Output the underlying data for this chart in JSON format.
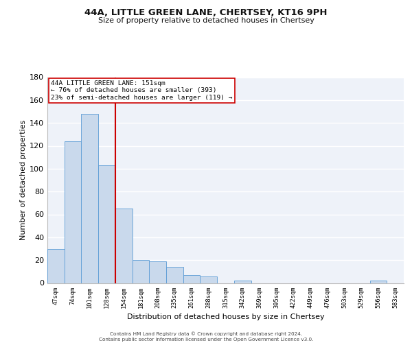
{
  "title1": "44A, LITTLE GREEN LANE, CHERTSEY, KT16 9PH",
  "title2": "Size of property relative to detached houses in Chertsey",
  "xlabel": "Distribution of detached houses by size in Chertsey",
  "ylabel": "Number of detached properties",
  "bin_labels": [
    "47sqm",
    "74sqm",
    "101sqm",
    "128sqm",
    "154sqm",
    "181sqm",
    "208sqm",
    "235sqm",
    "261sqm",
    "288sqm",
    "315sqm",
    "342sqm",
    "369sqm",
    "395sqm",
    "422sqm",
    "449sqm",
    "476sqm",
    "503sqm",
    "529sqm",
    "556sqm",
    "583sqm"
  ],
  "bar_values": [
    30,
    124,
    148,
    103,
    65,
    20,
    19,
    14,
    7,
    6,
    0,
    2,
    0,
    0,
    0,
    0,
    0,
    0,
    0,
    2,
    0
  ],
  "bar_color": "#c9d9ec",
  "bar_edge_color": "#5b9bd5",
  "annotation_line1": "44A LITTLE GREEN LANE: 151sqm",
  "annotation_line2": "← 76% of detached houses are smaller (393)",
  "annotation_line3": "23% of semi-detached houses are larger (119) →",
  "vline_color": "#cc0000",
  "vline_x": 3.5,
  "ylim": [
    0,
    180
  ],
  "yticks": [
    0,
    20,
    40,
    60,
    80,
    100,
    120,
    140,
    160,
    180
  ],
  "footer1": "Contains HM Land Registry data © Crown copyright and database right 2024.",
  "footer2": "Contains public sector information licensed under the Open Government Licence v3.0.",
  "background_color": "#eef2f9",
  "grid_color": "#ffffff",
  "title1_fontsize": 9.5,
  "title2_fontsize": 8.0
}
